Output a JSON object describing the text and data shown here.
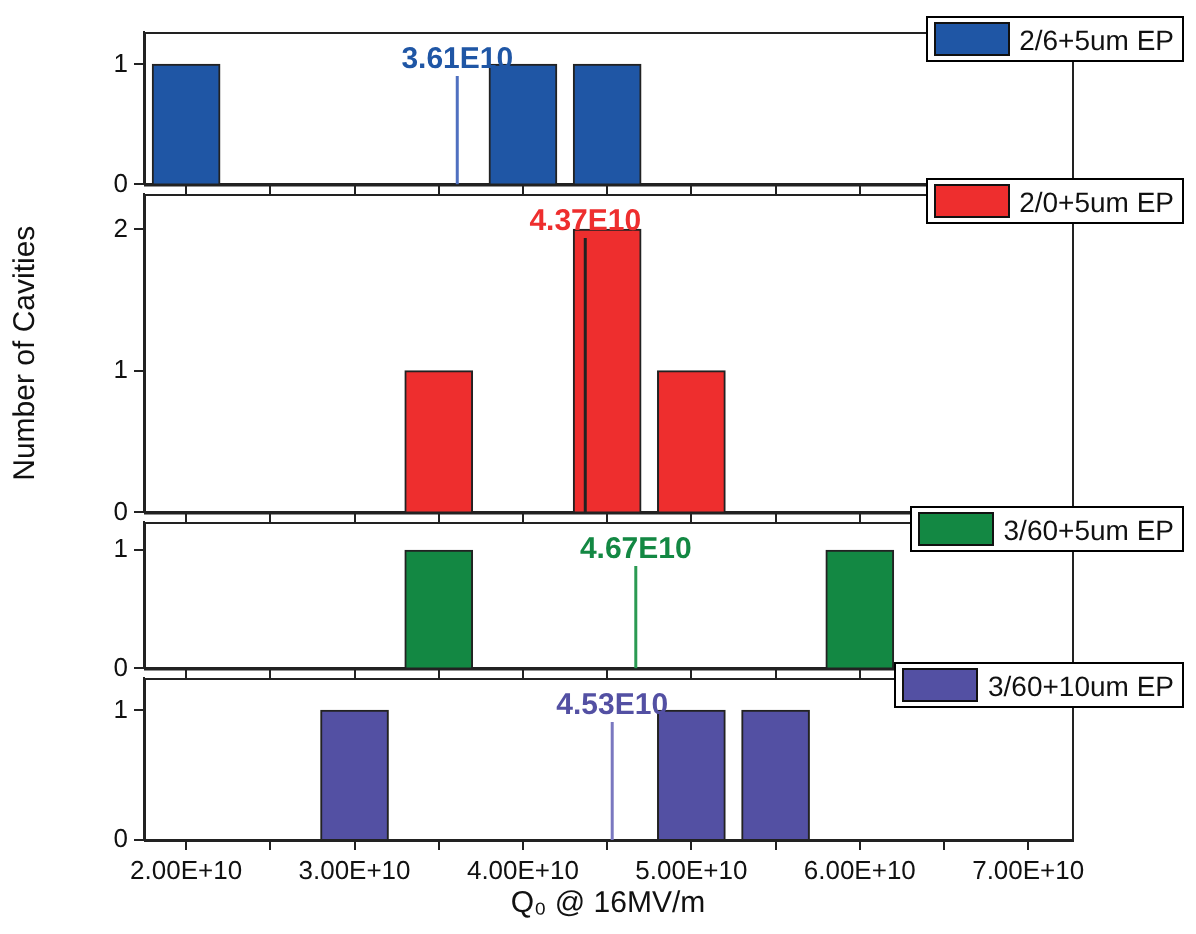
{
  "chart_data": [
    {
      "type": "bar",
      "x": [
        20000000000,
        40000000000,
        45000000000
      ],
      "series": [
        {
          "name": "2/6+5um EP",
          "color": "#1f56a5",
          "values": [
            1,
            1,
            1
          ]
        }
      ],
      "xlim": [
        17500000000,
        72600000000
      ],
      "xticks": [
        {
          "value": 20000000000,
          "label": null
        },
        {
          "value": 25000000000,
          "label": null
        },
        {
          "value": 30000000000,
          "label": null
        },
        {
          "value": 35000000000,
          "label": null
        },
        {
          "value": 40000000000,
          "label": null
        },
        {
          "value": 45000000000,
          "label": null
        },
        {
          "value": 50000000000,
          "label": null
        },
        {
          "value": 55000000000,
          "label": null
        },
        {
          "value": 60000000000,
          "label": null
        },
        {
          "value": 65000000000,
          "label": null
        },
        {
          "value": 70000000000,
          "label": null
        }
      ],
      "ylim": [
        0,
        1.27
      ],
      "yticks": [
        0,
        1
      ],
      "ref_lines": [
        {
          "axis": "x",
          "value": 36100000000,
          "label": "3.61E10",
          "color": "#4f70c0"
        }
      ],
      "legend": "top right",
      "tick_labels": "y"
    },
    {
      "type": "bar",
      "x": [
        35000000000,
        45000000000,
        50000000000
      ],
      "series": [
        {
          "name": "2/0+5um EP",
          "color": "#ee2e2e",
          "values": [
            1,
            2,
            1
          ]
        }
      ],
      "xlim": [
        17500000000,
        72600000000
      ],
      "xticks": [
        {
          "value": 20000000000,
          "label": null
        },
        {
          "value": 25000000000,
          "label": null
        },
        {
          "value": 30000000000,
          "label": null
        },
        {
          "value": 35000000000,
          "label": null
        },
        {
          "value": 40000000000,
          "label": null
        },
        {
          "value": 45000000000,
          "label": null
        },
        {
          "value": 50000000000,
          "label": null
        },
        {
          "value": 55000000000,
          "label": null
        },
        {
          "value": 60000000000,
          "label": null
        },
        {
          "value": 65000000000,
          "label": null
        },
        {
          "value": 70000000000,
          "label": null
        }
      ],
      "ylim": [
        0,
        2.25
      ],
      "yticks": [
        0,
        1,
        2
      ],
      "ylabel": "Number of Cavities",
      "ref_lines": [
        {
          "axis": "x",
          "value": 43700000000,
          "label": "4.37E10",
          "color": "#222222"
        }
      ],
      "legend": "top right",
      "tick_labels": "y"
    },
    {
      "type": "bar",
      "x": [
        35000000000,
        60000000000
      ],
      "series": [
        {
          "name": "3/60+5um EP",
          "color": "#138843",
          "values": [
            1,
            1
          ]
        }
      ],
      "xlim": [
        17500000000,
        72600000000
      ],
      "xticks": [
        {
          "value": 20000000000,
          "label": null
        },
        {
          "value": 25000000000,
          "label": null
        },
        {
          "value": 30000000000,
          "label": null
        },
        {
          "value": 35000000000,
          "label": null
        },
        {
          "value": 40000000000,
          "label": null
        },
        {
          "value": 45000000000,
          "label": null
        },
        {
          "value": 50000000000,
          "label": null
        },
        {
          "value": 55000000000,
          "label": null
        },
        {
          "value": 60000000000,
          "label": null
        },
        {
          "value": 65000000000,
          "label": null
        },
        {
          "value": 70000000000,
          "label": null
        }
      ],
      "ylim": [
        0,
        1.24
      ],
      "yticks": [
        0,
        1
      ],
      "ref_lines": [
        {
          "axis": "x",
          "value": 46700000000,
          "label": "4.67E10",
          "color": "#2a9a52"
        }
      ],
      "legend": "top right",
      "tick_labels": "y"
    },
    {
      "type": "bar",
      "x": [
        30000000000,
        50000000000,
        55000000000
      ],
      "series": [
        {
          "name": "3/60+10um EP",
          "color": "#5350a3",
          "values": [
            1,
            1,
            1
          ]
        }
      ],
      "xlim": [
        17500000000,
        72600000000
      ],
      "xticks": [
        {
          "value": 20000000000,
          "label": "2.00E+10"
        },
        {
          "value": 25000000000,
          "label": null
        },
        {
          "value": 30000000000,
          "label": "3.00E+10"
        },
        {
          "value": 35000000000,
          "label": null
        },
        {
          "value": 40000000000,
          "label": "4.00E+10"
        },
        {
          "value": 45000000000,
          "label": null
        },
        {
          "value": 50000000000,
          "label": "5.00E+10"
        },
        {
          "value": 55000000000,
          "label": null
        },
        {
          "value": 60000000000,
          "label": "6.00E+10"
        },
        {
          "value": 65000000000,
          "label": null
        },
        {
          "value": 70000000000,
          "label": "7.00E+10"
        }
      ],
      "ylim": [
        0,
        1.25
      ],
      "yticks": [
        0,
        1
      ],
      "xlabel": "Q₀ @ 16MV/m",
      "ref_lines": [
        {
          "axis": "x",
          "value": 45300000000,
          "label": "4.53E10",
          "color": "#7a78c0"
        }
      ],
      "legend": "top right"
    }
  ]
}
